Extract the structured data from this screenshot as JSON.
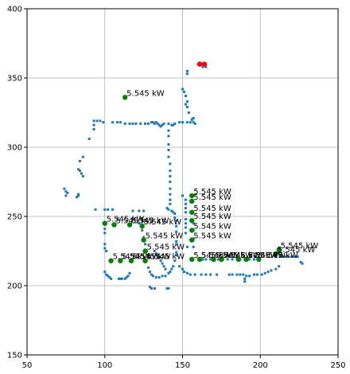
{
  "chart_data": {
    "type": "scatter",
    "title": "",
    "xlabel": "",
    "ylabel": "",
    "xlim": [
      50,
      250
    ],
    "ylim": [
      150,
      400
    ],
    "grid": true,
    "x_ticks": [
      50,
      100,
      150,
      200,
      250
    ],
    "y_ticks": [
      150,
      200,
      250,
      300,
      350,
      400
    ],
    "colors": {
      "background_points": "#1f77b4",
      "sources": "#008000",
      "depot": "#ff0000"
    },
    "series": [
      {
        "marker": "small-dot",
        "points": [
          [
            93,
            319
          ],
          [
            95,
            319
          ],
          [
            97,
            319
          ],
          [
            99,
            318
          ],
          [
            105,
            318
          ],
          [
            108,
            318
          ],
          [
            110,
            318
          ],
          [
            113,
            317
          ],
          [
            116,
            317
          ],
          [
            118,
            317
          ],
          [
            120,
            317
          ],
          [
            123,
            317
          ],
          [
            126,
            317
          ],
          [
            128,
            317
          ],
          [
            130,
            318
          ],
          [
            131,
            318
          ],
          [
            132,
            317
          ],
          [
            133,
            318
          ],
          [
            134,
            317
          ],
          [
            135,
            316
          ],
          [
            136,
            315
          ],
          [
            137,
            316
          ],
          [
            138,
            317
          ],
          [
            141,
            317
          ],
          [
            143,
            316
          ],
          [
            144,
            316
          ],
          [
            145,
            317
          ],
          [
            148,
            318
          ],
          [
            150,
            318
          ],
          [
            153,
            318
          ],
          [
            155,
            318
          ],
          [
            156,
            320
          ],
          [
            157,
            321
          ],
          [
            93,
            316
          ],
          [
            93,
            313
          ],
          [
            90,
            306
          ],
          [
            86,
            293
          ],
          [
            84,
            290
          ],
          [
            83,
            284
          ],
          [
            84,
            283
          ],
          [
            85,
            281
          ],
          [
            86,
            279
          ],
          [
            75,
            268
          ],
          [
            76,
            267
          ],
          [
            75,
            265
          ],
          [
            74,
            270
          ],
          [
            83,
            266
          ],
          [
            82,
            264
          ],
          [
            83,
            265
          ],
          [
            94,
            255
          ],
          [
            100,
            255
          ],
          [
            102,
            255
          ],
          [
            105,
            255
          ],
          [
            118,
            254
          ],
          [
            122,
            254
          ],
          [
            125,
            254
          ],
          [
            100,
            241
          ],
          [
            100,
            238
          ],
          [
            100,
            230
          ],
          [
            100,
            227
          ],
          [
            101,
            225
          ],
          [
            100,
            210
          ],
          [
            101,
            208
          ],
          [
            102,
            207
          ],
          [
            103,
            206
          ],
          [
            104,
            205
          ],
          [
            109,
            205
          ],
          [
            110,
            205
          ],
          [
            111,
            205
          ],
          [
            113,
            205
          ],
          [
            114,
            206
          ],
          [
            115,
            207
          ],
          [
            116,
            209
          ],
          [
            128,
            213
          ],
          [
            129,
            210
          ],
          [
            130,
            208
          ],
          [
            131,
            207
          ],
          [
            133,
            206
          ],
          [
            135,
            206
          ],
          [
            137,
            207
          ],
          [
            139,
            207
          ],
          [
            141,
            209
          ],
          [
            142,
            210
          ],
          [
            143,
            212
          ],
          [
            144,
            214
          ],
          [
            145,
            218
          ],
          [
            146,
            222
          ],
          [
            146,
            230
          ],
          [
            140,
            256
          ],
          [
            141,
            255
          ],
          [
            143,
            254
          ],
          [
            144,
            253
          ],
          [
            145,
            252
          ],
          [
            145,
            249
          ],
          [
            146,
            247
          ],
          [
            146,
            243
          ],
          [
            146,
            239
          ],
          [
            146,
            232
          ],
          [
            146,
            224
          ],
          [
            141,
            312
          ],
          [
            141,
            308
          ],
          [
            141,
            302
          ],
          [
            141,
            298
          ],
          [
            141,
            293
          ],
          [
            142,
            288
          ],
          [
            142,
            283
          ],
          [
            142,
            279
          ],
          [
            142,
            275
          ],
          [
            142,
            270
          ],
          [
            142,
            266
          ],
          [
            142,
            262
          ],
          [
            142,
            259
          ],
          [
            132,
            225
          ],
          [
            133,
            223
          ],
          [
            134,
            222
          ],
          [
            135,
            220
          ],
          [
            136,
            218
          ],
          [
            137,
            216
          ],
          [
            138,
            214
          ],
          [
            139,
            212
          ],
          [
            128,
            222
          ],
          [
            127,
            225
          ],
          [
            126,
            230
          ],
          [
            125,
            235
          ],
          [
            124,
            240
          ],
          [
            122,
            245
          ],
          [
            129,
            199
          ],
          [
            130,
            198
          ],
          [
            132,
            198
          ],
          [
            140,
            198
          ],
          [
            141,
            198
          ],
          [
            148,
            214
          ],
          [
            150,
            212
          ],
          [
            151,
            210
          ],
          [
            153,
            209
          ],
          [
            155,
            208
          ],
          [
            158,
            208
          ],
          [
            162,
            208
          ],
          [
            165,
            208
          ],
          [
            168,
            208
          ],
          [
            172,
            208
          ],
          [
            150,
            342
          ],
          [
            151,
            340
          ],
          [
            152,
            337
          ],
          [
            153,
            333
          ],
          [
            152,
            331
          ],
          [
            153,
            329
          ],
          [
            154,
            325
          ],
          [
            156,
            320
          ],
          [
            157,
            318
          ],
          [
            158,
            317
          ],
          [
            153,
            353
          ],
          [
            153,
            355
          ],
          [
            150,
            265
          ],
          [
            152,
            262
          ],
          [
            152,
            259
          ],
          [
            152,
            256
          ],
          [
            152,
            253
          ],
          [
            152,
            248
          ],
          [
            152,
            245
          ],
          [
            152,
            242
          ],
          [
            152,
            238
          ],
          [
            153,
            228
          ],
          [
            156,
            252
          ],
          [
            157,
            245
          ],
          [
            157,
            240
          ],
          [
            157,
            234
          ],
          [
            157,
            228
          ],
          [
            163,
            219
          ],
          [
            165,
            219
          ],
          [
            168,
            219
          ],
          [
            170,
            219
          ],
          [
            173,
            219
          ],
          [
            176,
            219
          ],
          [
            179,
            219
          ],
          [
            182,
            219
          ],
          [
            185,
            220
          ],
          [
            187,
            219
          ],
          [
            190,
            219
          ],
          [
            193,
            219
          ],
          [
            196,
            219
          ],
          [
            199,
            219
          ],
          [
            180,
            208
          ],
          [
            182,
            208
          ],
          [
            185,
            208
          ],
          [
            187,
            208
          ],
          [
            189,
            208
          ],
          [
            191,
            207
          ],
          [
            193,
            207
          ],
          [
            196,
            208
          ],
          [
            198,
            208
          ],
          [
            201,
            208
          ],
          [
            203,
            209
          ],
          [
            205,
            210
          ],
          [
            207,
            211
          ],
          [
            210,
            212
          ],
          [
            212,
            214
          ],
          [
            190,
            205
          ],
          [
            190,
            203
          ],
          [
            213,
            222
          ],
          [
            214,
            221
          ],
          [
            216,
            221
          ],
          [
            218,
            221
          ],
          [
            220,
            221
          ],
          [
            222,
            221
          ],
          [
            224,
            221
          ],
          [
            226,
            217
          ],
          [
            227,
            216
          ],
          [
            163,
            358
          ],
          [
            165,
            358
          ],
          [
            164,
            360
          ],
          [
            161,
            361
          ]
        ]
      },
      {
        "marker": "large-dot",
        "label": "5.545 kW",
        "points": [
          [
            113,
            336
          ],
          [
            100,
            245
          ],
          [
            106,
            244
          ],
          [
            116,
            244
          ],
          [
            124,
            243
          ],
          [
            125,
            233
          ],
          [
            126,
            225
          ],
          [
            156,
            265
          ],
          [
            156,
            261
          ],
          [
            156,
            253
          ],
          [
            156,
            247
          ],
          [
            156,
            240
          ],
          [
            156,
            233
          ],
          [
            104,
            218
          ],
          [
            110,
            218
          ],
          [
            117,
            218
          ],
          [
            126,
            218
          ],
          [
            156,
            219
          ],
          [
            161,
            219
          ],
          [
            170,
            219
          ],
          [
            175,
            219
          ],
          [
            186,
            219
          ],
          [
            191,
            219
          ],
          [
            199,
            219
          ],
          [
            210,
            223
          ],
          [
            212,
            226
          ]
        ],
        "annotations": [
          {
            "xy": [
              113,
              336
            ],
            "text": "5.545 kW"
          },
          {
            "xy": [
              100,
              245
            ],
            "text": "5.545 kW"
          },
          {
            "xy": [
              106,
              244
            ],
            "text": "5.545 kW"
          },
          {
            "xy": [
              116,
              244
            ],
            "text": "5.545 kW"
          },
          {
            "xy": [
              124,
              243
            ],
            "text": "5.545 kW"
          },
          {
            "xy": [
              125,
              233
            ],
            "text": "5.545 kW"
          },
          {
            "xy": [
              126,
              225
            ],
            "text": "5.545 kW"
          },
          {
            "xy": [
              156,
              265
            ],
            "text": "5.545 kW"
          },
          {
            "xy": [
              156,
              261
            ],
            "text": "5.545 kW"
          },
          {
            "xy": [
              156,
              253
            ],
            "text": "5.545 kW"
          },
          {
            "xy": [
              156,
              247
            ],
            "text": "5.545 kW"
          },
          {
            "xy": [
              156,
              240
            ],
            "text": "5.545 kW"
          },
          {
            "xy": [
              156,
              233
            ],
            "text": "5.545 kW"
          },
          {
            "xy": [
              104,
              218
            ],
            "text": "5.545 kW"
          },
          {
            "xy": [
              110,
              218
            ],
            "text": "5.545 kW"
          },
          {
            "xy": [
              117,
              218
            ],
            "text": "5.545 kW"
          },
          {
            "xy": [
              126,
              218
            ],
            "text": "5.545 kW"
          },
          {
            "xy": [
              156,
              219
            ],
            "text": "5.545 kW"
          },
          {
            "xy": [
              161,
              219
            ],
            "text": "5.545 kW"
          },
          {
            "xy": [
              170,
              219
            ],
            "text": "5.545 kW"
          },
          {
            "xy": [
              175,
              219
            ],
            "text": "5.545 kW"
          },
          {
            "xy": [
              186,
              219
            ],
            "text": "5.545 kW"
          },
          {
            "xy": [
              191,
              219
            ],
            "text": "5.545 kW"
          },
          {
            "xy": [
              199,
              219
            ],
            "text": "5.545 kW"
          },
          {
            "xy": [
              210,
              223
            ],
            "text": "5.545 kW"
          },
          {
            "xy": [
              212,
              226
            ],
            "text": "5.545 kW"
          }
        ]
      },
      {
        "marker": "large-dot",
        "points": [
          [
            161,
            360
          ],
          [
            164,
            360
          ]
        ]
      }
    ]
  }
}
